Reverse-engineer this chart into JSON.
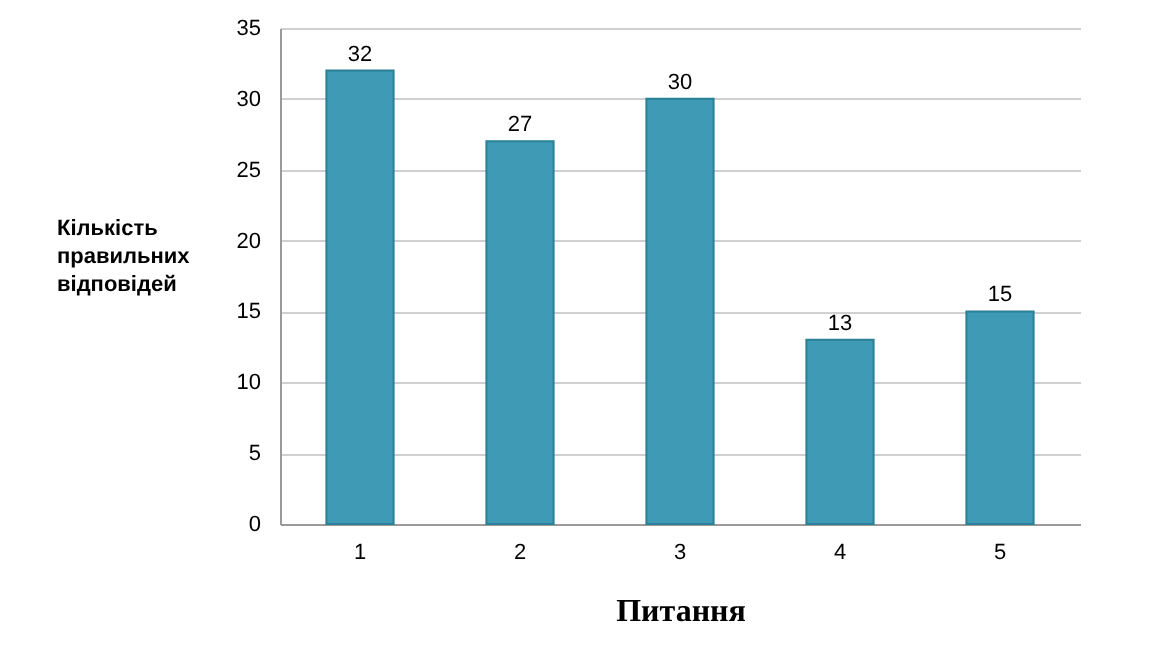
{
  "chart_data": {
    "type": "bar",
    "xlabel": "Питання",
    "ylabel": "Кількість правильних відповідей",
    "categories": [
      "1",
      "2",
      "3",
      "4",
      "5"
    ],
    "values": [
      32,
      27,
      30,
      13,
      15
    ],
    "color": "#3f9bb5",
    "ylim": [
      0,
      35
    ],
    "yticks": [
      0,
      5,
      10,
      15,
      20,
      25,
      30,
      35
    ],
    "grid": "y",
    "data_labels": true
  }
}
